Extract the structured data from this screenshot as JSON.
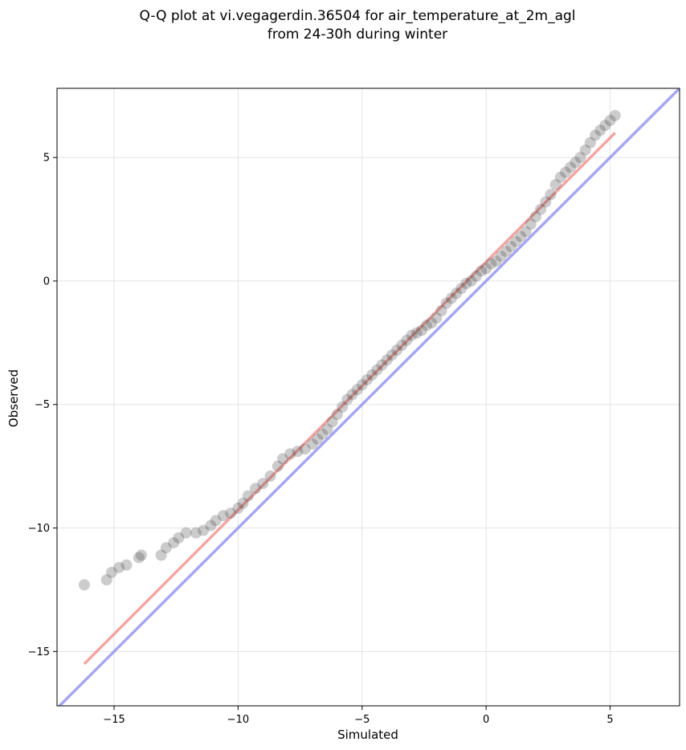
{
  "chart_data": {
    "type": "scatter",
    "title_lines": [
      "Q-Q plot at vi.vegagerdin.36504 for air_temperature_at_2m_agl",
      "from 24-30h during winter"
    ],
    "xlabel": "Simulated",
    "ylabel": "Observed",
    "xlim": [
      -17.3,
      7.8
    ],
    "ylim": [
      -17.2,
      7.8
    ],
    "x_ticks": [
      -15,
      -10,
      -5,
      0,
      5
    ],
    "y_ticks": [
      -15,
      -10,
      -5,
      0,
      5
    ],
    "x_tick_labels": [
      "−15",
      "−10",
      "−5",
      "0",
      "5"
    ],
    "y_tick_labels": [
      "−15",
      "−10",
      "−5",
      "0",
      "5"
    ],
    "grid": true,
    "colors": {
      "points": "#333333",
      "fit_line": "#f08080",
      "identity_line": "#8888ee"
    },
    "identity_line": {
      "x": [
        -17.3,
        7.8
      ],
      "y": [
        -17.3,
        7.8
      ]
    },
    "fit_line": {
      "x": [
        -16.2,
        5.2
      ],
      "y": [
        -15.5,
        6.0
      ]
    },
    "points": [
      [
        -16.2,
        -12.3
      ],
      [
        -15.3,
        -12.1
      ],
      [
        -15.1,
        -11.8
      ],
      [
        -14.8,
        -11.6
      ],
      [
        -14.5,
        -11.5
      ],
      [
        -14.0,
        -11.2
      ],
      [
        -13.9,
        -11.1
      ],
      [
        -13.1,
        -11.1
      ],
      [
        -12.9,
        -10.8
      ],
      [
        -12.6,
        -10.6
      ],
      [
        -12.4,
        -10.4
      ],
      [
        -12.1,
        -10.2
      ],
      [
        -11.7,
        -10.2
      ],
      [
        -11.4,
        -10.1
      ],
      [
        -11.1,
        -9.9
      ],
      [
        -10.9,
        -9.7
      ],
      [
        -10.6,
        -9.5
      ],
      [
        -10.3,
        -9.4
      ],
      [
        -10.0,
        -9.2
      ],
      [
        -9.8,
        -9.0
      ],
      [
        -9.6,
        -8.7
      ],
      [
        -9.3,
        -8.4
      ],
      [
        -9.0,
        -8.2
      ],
      [
        -8.7,
        -7.9
      ],
      [
        -8.4,
        -7.5
      ],
      [
        -8.2,
        -7.2
      ],
      [
        -7.9,
        -7.0
      ],
      [
        -7.6,
        -6.9
      ],
      [
        -7.3,
        -6.8
      ],
      [
        -7.0,
        -6.6
      ],
      [
        -6.8,
        -6.4
      ],
      [
        -6.6,
        -6.2
      ],
      [
        -6.4,
        -6.0
      ],
      [
        -6.2,
        -5.7
      ],
      [
        -6.0,
        -5.4
      ],
      [
        -5.8,
        -5.1
      ],
      [
        -5.6,
        -4.8
      ],
      [
        -5.4,
        -4.6
      ],
      [
        -5.2,
        -4.4
      ],
      [
        -5.0,
        -4.2
      ],
      [
        -4.8,
        -4.0
      ],
      [
        -4.6,
        -3.8
      ],
      [
        -4.4,
        -3.6
      ],
      [
        -4.2,
        -3.4
      ],
      [
        -4.0,
        -3.2
      ],
      [
        -3.8,
        -3.0
      ],
      [
        -3.6,
        -2.8
      ],
      [
        -3.4,
        -2.6
      ],
      [
        -3.2,
        -2.4
      ],
      [
        -3.0,
        -2.2
      ],
      [
        -2.8,
        -2.1
      ],
      [
        -2.6,
        -2.0
      ],
      [
        -2.4,
        -1.8
      ],
      [
        -2.2,
        -1.7
      ],
      [
        -2.0,
        -1.5
      ],
      [
        -1.8,
        -1.2
      ],
      [
        -1.6,
        -0.9
      ],
      [
        -1.4,
        -0.7
      ],
      [
        -1.2,
        -0.5
      ],
      [
        -1.0,
        -0.3
      ],
      [
        -0.8,
        -0.1
      ],
      [
        -0.6,
        0.0
      ],
      [
        -0.4,
        0.2
      ],
      [
        -0.2,
        0.4
      ],
      [
        0.0,
        0.5
      ],
      [
        0.2,
        0.7
      ],
      [
        0.4,
        0.8
      ],
      [
        0.6,
        1.0
      ],
      [
        0.8,
        1.2
      ],
      [
        1.0,
        1.4
      ],
      [
        1.2,
        1.6
      ],
      [
        1.4,
        1.8
      ],
      [
        1.6,
        2.0
      ],
      [
        1.8,
        2.3
      ],
      [
        2.0,
        2.6
      ],
      [
        2.2,
        2.9
      ],
      [
        2.4,
        3.2
      ],
      [
        2.6,
        3.5
      ],
      [
        2.8,
        3.9
      ],
      [
        3.0,
        4.2
      ],
      [
        3.2,
        4.4
      ],
      [
        3.4,
        4.6
      ],
      [
        3.6,
        4.8
      ],
      [
        3.8,
        5.0
      ],
      [
        4.0,
        5.3
      ],
      [
        4.2,
        5.6
      ],
      [
        4.4,
        5.9
      ],
      [
        4.6,
        6.1
      ],
      [
        4.8,
        6.3
      ],
      [
        5.0,
        6.5
      ],
      [
        5.2,
        6.7
      ]
    ]
  }
}
